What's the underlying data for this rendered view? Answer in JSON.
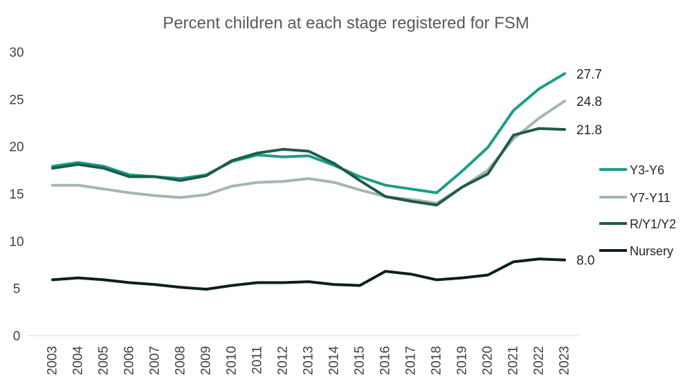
{
  "chart_data": {
    "type": "line",
    "title": "Percent children at each stage registered for FSM",
    "xlabel": "",
    "ylabel": "",
    "ylim": [
      0,
      30
    ],
    "yticks": [
      0,
      5,
      10,
      15,
      20,
      25,
      30
    ],
    "grid": false,
    "legend_position": "right",
    "categories": [
      "2003",
      "2004",
      "2005",
      "2006",
      "2007",
      "2008",
      "2009",
      "2010",
      "2011",
      "2012",
      "2013",
      "2014",
      "2015",
      "2016",
      "2017",
      "2018",
      "2019",
      "2020",
      "2021",
      "2022",
      "2023"
    ],
    "series": [
      {
        "name": "Y3-Y6",
        "color": "#1a9e89",
        "values": [
          17.9,
          18.3,
          17.9,
          17.0,
          16.8,
          16.6,
          17.0,
          18.4,
          19.1,
          18.9,
          19.0,
          18.0,
          16.8,
          15.9,
          15.5,
          15.1,
          17.4,
          19.9,
          23.8,
          26.1,
          27.7
        ],
        "end_label": "27.7"
      },
      {
        "name": "Y7-Y11",
        "color": "#a3b8ad",
        "values": [
          15.9,
          15.9,
          15.5,
          15.1,
          14.8,
          14.6,
          14.9,
          15.8,
          16.2,
          16.3,
          16.6,
          16.2,
          15.4,
          14.7,
          14.4,
          14.0,
          15.7,
          17.5,
          20.8,
          23.0,
          24.8
        ],
        "end_label": "24.8"
      },
      {
        "name": "R/Y1/Y2",
        "color": "#1e5c48",
        "values": [
          17.7,
          18.1,
          17.7,
          16.8,
          16.8,
          16.4,
          16.9,
          18.5,
          19.3,
          19.7,
          19.5,
          18.2,
          16.4,
          14.7,
          14.2,
          13.8,
          15.7,
          17.1,
          21.2,
          21.9,
          21.8
        ],
        "end_label": "21.8"
      },
      {
        "name": "Nursery",
        "color": "#0d1f1a",
        "values": [
          5.9,
          6.1,
          5.9,
          5.6,
          5.4,
          5.1,
          4.9,
          5.3,
          5.6,
          5.6,
          5.7,
          5.4,
          5.3,
          6.8,
          6.5,
          5.9,
          6.1,
          6.4,
          7.8,
          8.1,
          8.0
        ],
        "end_label": "8.0"
      }
    ]
  }
}
